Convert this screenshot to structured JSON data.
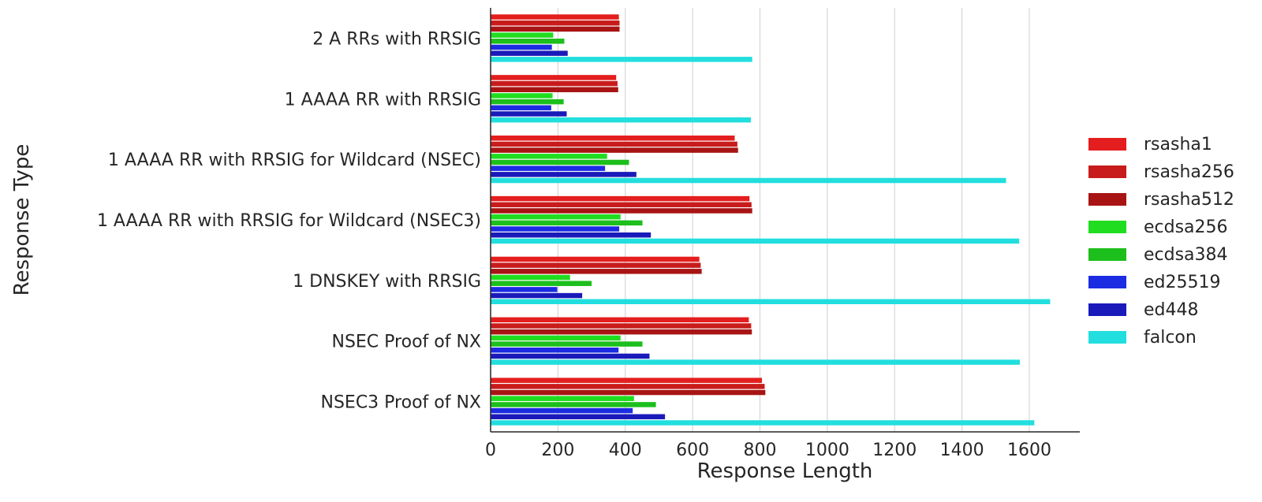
{
  "chart_data": {
    "type": "bar",
    "orientation": "horizontal",
    "xlabel": "Response Length",
    "ylabel": "Response Type",
    "xlim": [
      0,
      1750
    ],
    "xticks": [
      0,
      200,
      400,
      600,
      800,
      1000,
      1200,
      1400,
      1600
    ],
    "grid": "vertical",
    "legend_position": "right",
    "categories": [
      "2 A RRs with RRSIG",
      "1 AAAA RR with RRSIG",
      "1 AAAA RR with RRSIG for Wildcard (NSEC)",
      "1 AAAA RR with RRSIG for Wildcard (NSEC3)",
      "1 DNSKEY with RRSIG",
      "NSEC Proof of NX",
      "NSEC3 Proof of NX"
    ],
    "series": [
      {
        "name": "rsasha1",
        "color": "#e41e1e",
        "values": [
          381,
          373,
          725,
          769,
          620,
          767,
          806
        ]
      },
      {
        "name": "rsasha256",
        "color": "#c81c1c",
        "values": [
          383,
          377,
          733,
          775,
          624,
          774,
          814
        ]
      },
      {
        "name": "rsasha512",
        "color": "#a81414",
        "values": [
          383,
          379,
          735,
          777,
          627,
          776,
          816
        ]
      },
      {
        "name": "ecdsa256",
        "color": "#20dd20",
        "values": [
          186,
          184,
          346,
          386,
          236,
          386,
          426
        ]
      },
      {
        "name": "ecdsa384",
        "color": "#1cbf1c",
        "values": [
          219,
          217,
          411,
          451,
          300,
          451,
          491
        ]
      },
      {
        "name": "ed25519",
        "color": "#1c2ce2",
        "values": [
          182,
          180,
          340,
          382,
          198,
          380,
          422
        ]
      },
      {
        "name": "ed448",
        "color": "#1a1aba",
        "values": [
          229,
          226,
          433,
          476,
          272,
          472,
          518
        ]
      },
      {
        "name": "falcon",
        "color": "#22dede",
        "values": [
          777,
          773,
          1531,
          1570,
          1662,
          1572,
          1615
        ]
      }
    ]
  }
}
